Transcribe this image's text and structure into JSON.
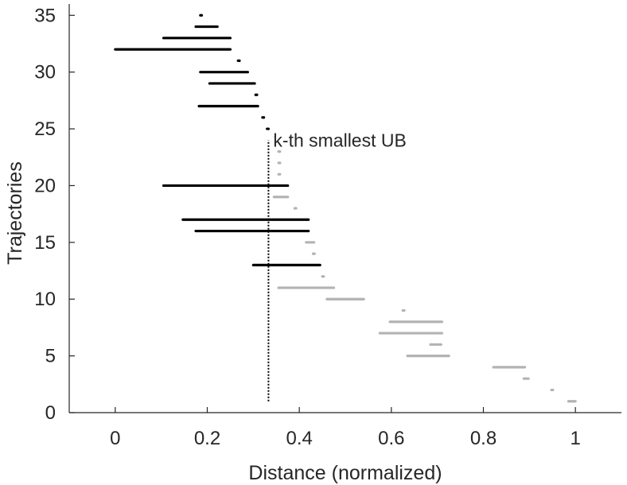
{
  "chart_data": {
    "type": "interval",
    "xlabel": "Distance (normalized)",
    "ylabel": "Trajectories",
    "xlim": [
      -0.1,
      1.1
    ],
    "ylim": [
      0,
      36
    ],
    "xticks": [
      0,
      0.2,
      0.4,
      0.6,
      0.8,
      1
    ],
    "xtick_labels": [
      "0",
      "0.2",
      "0.4",
      "0.6",
      "0.8",
      "1"
    ],
    "yticks": [
      0,
      5,
      10,
      15,
      20,
      25,
      30,
      35
    ],
    "ytick_labels": [
      "0",
      "5",
      "10",
      "15",
      "20",
      "25",
      "30",
      "35"
    ],
    "colors": {
      "candidate": "#000000",
      "pruned": "#b3b3b3",
      "axis": "#262626"
    },
    "threshold": {
      "x": 0.333,
      "y_from": 1,
      "y_to": 24,
      "label": "k-th smallest UB"
    },
    "series": [
      {
        "color": "candidate",
        "intervals": [
          [
            35,
            0.185,
            0.188
          ],
          [
            34,
            0.175,
            0.222
          ],
          [
            33,
            0.105,
            0.25
          ],
          [
            32,
            0.0,
            0.25
          ],
          [
            31,
            0.267,
            0.27
          ],
          [
            30,
            0.185,
            0.288
          ],
          [
            29,
            0.205,
            0.303
          ],
          [
            28,
            0.305,
            0.308
          ],
          [
            27,
            0.182,
            0.31
          ],
          [
            26,
            0.32,
            0.323
          ],
          [
            25,
            0.33,
            0.333
          ],
          [
            20,
            0.105,
            0.375
          ],
          [
            17,
            0.147,
            0.42
          ],
          [
            16,
            0.175,
            0.42
          ],
          [
            13,
            0.3,
            0.445
          ]
        ]
      },
      {
        "color": "pruned",
        "intervals": [
          [
            23,
            0.355,
            0.358
          ],
          [
            22,
            0.355,
            0.358
          ],
          [
            21,
            0.355,
            0.358
          ],
          [
            19,
            0.345,
            0.375
          ],
          [
            18,
            0.39,
            0.393
          ],
          [
            15,
            0.415,
            0.432
          ],
          [
            14,
            0.43,
            0.433
          ],
          [
            12,
            0.45,
            0.453
          ],
          [
            11,
            0.355,
            0.475
          ],
          [
            10,
            0.46,
            0.54
          ],
          [
            9,
            0.625,
            0.628
          ],
          [
            8,
            0.597,
            0.71
          ],
          [
            7,
            0.575,
            0.71
          ],
          [
            6,
            0.685,
            0.708
          ],
          [
            5,
            0.635,
            0.725
          ],
          [
            4,
            0.822,
            0.89
          ],
          [
            3,
            0.888,
            0.898
          ],
          [
            2,
            0.948,
            0.951
          ],
          [
            1,
            0.985,
            1.0
          ]
        ]
      }
    ]
  }
}
